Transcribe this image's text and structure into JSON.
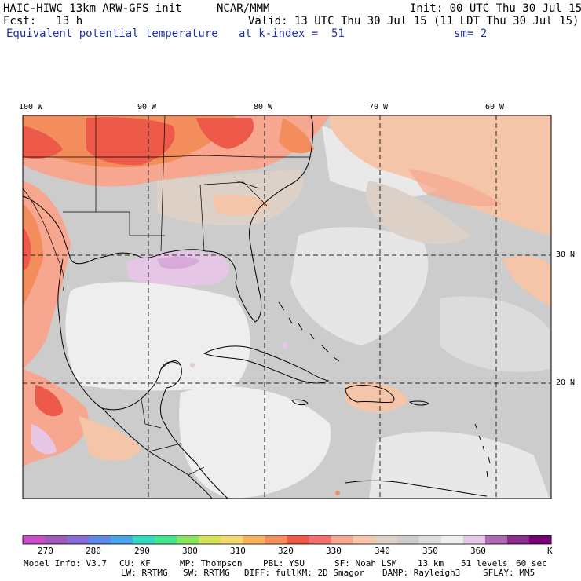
{
  "header": {
    "model": "HAIC-HIWC 13km ARW-GFS init",
    "org": "NCAR/MMM",
    "init": "Init: 00 UTC Thu 30 Jul 15",
    "fcst": "Fcst:   13 h",
    "valid": "Valid: 13 UTC Thu 30 Jul 15 (11 LDT Thu 30 Jul 15)",
    "field": "Equivalent potential temperature",
    "level": "at k-index =  51",
    "smooth": "sm= 2"
  },
  "map": {
    "lon_labels": [
      "100 W",
      "90 W",
      "80 W",
      "70 W",
      "60 W"
    ],
    "lat_labels": [
      "30 N",
      "20 N"
    ],
    "grid_color": "#222222"
  },
  "colorbar": {
    "colors": [
      "#c84fc8",
      "#a05ab9",
      "#8a6cd7",
      "#5f8be6",
      "#4aa6e6",
      "#36d6bc",
      "#46e28c",
      "#86e460",
      "#d2e25a",
      "#f2d870",
      "#f8b25e",
      "#f48d5c",
      "#ee5a4a",
      "#f47070",
      "#f7a68f",
      "#f5c5aa",
      "#ddd0c6",
      "#cccccc",
      "#dddddd",
      "#eeeeee",
      "#e5c7e5",
      "#b06ab2",
      "#8a2e8e",
      "#760076"
    ],
    "labels": [
      "270",
      "280",
      "290",
      "300",
      "310",
      "320",
      "330",
      "340",
      "350",
      "360"
    ],
    "unit": "K"
  },
  "footer": {
    "line1": [
      "Model Info: V3.7",
      "CU: KF",
      "MP: Thompson",
      "PBL: YSU",
      "SF: Noah LSM",
      "13 km",
      "51 levels",
      "60 sec"
    ],
    "line2": [
      "LW: RRTMG",
      "SW: RRTMG",
      "DIFF: full",
      "KM: 2D Smagor",
      "DAMP: Rayleigh3",
      "SFLAY: MM5"
    ]
  }
}
